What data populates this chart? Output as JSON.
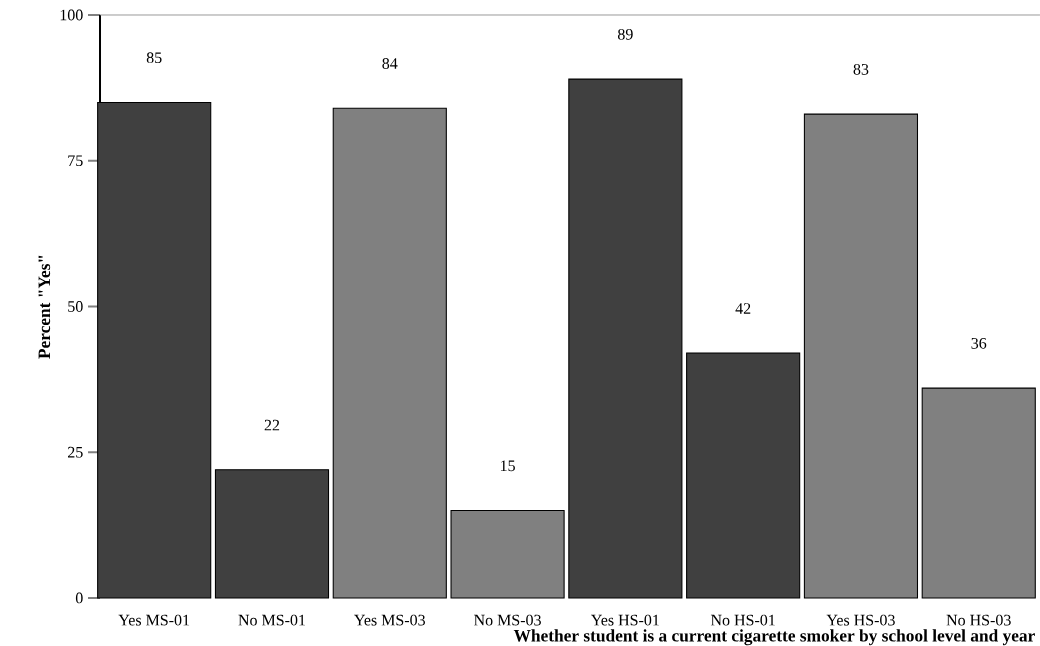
{
  "chart_data": {
    "type": "bar",
    "xlabel": "Whether student is a current cigarette smoker by school level and year",
    "ylabel": "Percent \"Yes\"",
    "categories": [
      "Yes MS-01",
      "No MS-01",
      "Yes MS-03",
      "No MS-03",
      "Yes HS-01",
      "No HS-01",
      "Yes HS-03",
      "No HS-03"
    ],
    "values": [
      85,
      22,
      84,
      15,
      89,
      42,
      83,
      36
    ],
    "colors": [
      "#404040",
      "#404040",
      "#808080",
      "#808080",
      "#404040",
      "#404040",
      "#808080",
      "#808080"
    ],
    "ylim": [
      0,
      100
    ],
    "yticks": [
      0,
      25,
      50,
      75,
      100
    ],
    "data_labels": true,
    "grid": false
  }
}
